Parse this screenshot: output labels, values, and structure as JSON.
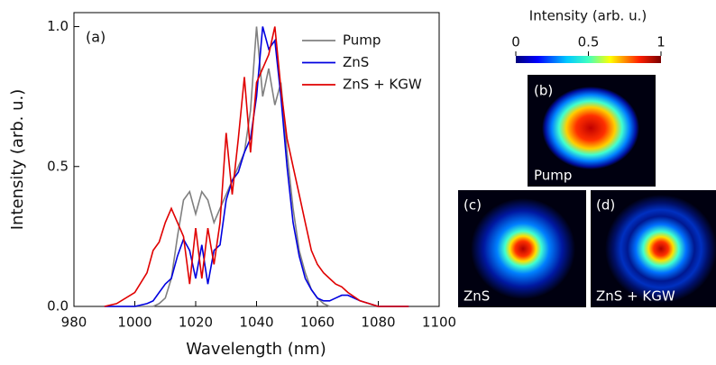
{
  "chart_data": {
    "type": "line",
    "panel_label": "(a)",
    "x_label": "Wavelength (nm)",
    "y_label": "Intensity (arb. u.)",
    "x": [
      990,
      994,
      1000,
      1004,
      1006,
      1008,
      1010,
      1012,
      1014,
      1016,
      1018,
      1020,
      1022,
      1024,
      1026,
      1028,
      1030,
      1032,
      1034,
      1036,
      1038,
      1040,
      1042,
      1044,
      1046,
      1048,
      1050,
      1052,
      1054,
      1056,
      1058,
      1060,
      1062,
      1064,
      1066,
      1068,
      1070,
      1074,
      1080,
      1090
    ],
    "series": [
      {
        "name": "Pump",
        "color": "#808080",
        "values": [
          0,
          0,
          0,
          0,
          0,
          0.01,
          0.03,
          0.1,
          0.25,
          0.38,
          0.41,
          0.33,
          0.41,
          0.38,
          0.3,
          0.35,
          0.4,
          0.45,
          0.5,
          0.55,
          0.7,
          1.0,
          0.75,
          0.85,
          0.72,
          0.8,
          0.55,
          0.35,
          0.2,
          0.12,
          0.06,
          0.03,
          0.01,
          0,
          0,
          0,
          0,
          0,
          0,
          0
        ]
      },
      {
        "name": "ZnS",
        "color": "#0000e0",
        "values": [
          0,
          0,
          0,
          0.01,
          0.02,
          0.05,
          0.08,
          0.1,
          0.18,
          0.24,
          0.2,
          0.1,
          0.22,
          0.08,
          0.2,
          0.22,
          0.38,
          0.45,
          0.48,
          0.55,
          0.6,
          0.75,
          1.0,
          0.92,
          0.95,
          0.75,
          0.5,
          0.3,
          0.18,
          0.1,
          0.06,
          0.03,
          0.02,
          0.02,
          0.03,
          0.04,
          0.04,
          0.02,
          0,
          0
        ]
      },
      {
        "name": "ZnS + KGW",
        "color": "#e00000",
        "values": [
          0,
          0.01,
          0.05,
          0.12,
          0.2,
          0.23,
          0.3,
          0.35,
          0.3,
          0.25,
          0.08,
          0.28,
          0.1,
          0.28,
          0.15,
          0.3,
          0.62,
          0.4,
          0.6,
          0.82,
          0.55,
          0.8,
          0.85,
          0.9,
          1.0,
          0.78,
          0.6,
          0.5,
          0.4,
          0.3,
          0.2,
          0.15,
          0.12,
          0.1,
          0.08,
          0.07,
          0.05,
          0.02,
          0,
          0
        ]
      }
    ],
    "xlim": [
      980,
      1100
    ],
    "xticks": [
      980,
      1000,
      1020,
      1040,
      1060,
      1080,
      1100
    ],
    "ylim": [
      0,
      1.05
    ],
    "yticks": [
      {
        "value": 0,
        "label": "0.0"
      },
      {
        "value": 0.5,
        "label": "0.5"
      },
      {
        "value": 1,
        "label": "1.0"
      }
    ],
    "legend": "upper-right"
  },
  "colorbar": {
    "title": "Intensity (arb. u.)",
    "lim": [
      0,
      1
    ],
    "ticks": [
      0,
      0.5,
      1
    ]
  },
  "panels": [
    {
      "label": "(b)",
      "caption": "Pump"
    },
    {
      "label": "(c)",
      "caption": "ZnS"
    },
    {
      "label": "(d)",
      "caption": "ZnS + KGW"
    }
  ]
}
